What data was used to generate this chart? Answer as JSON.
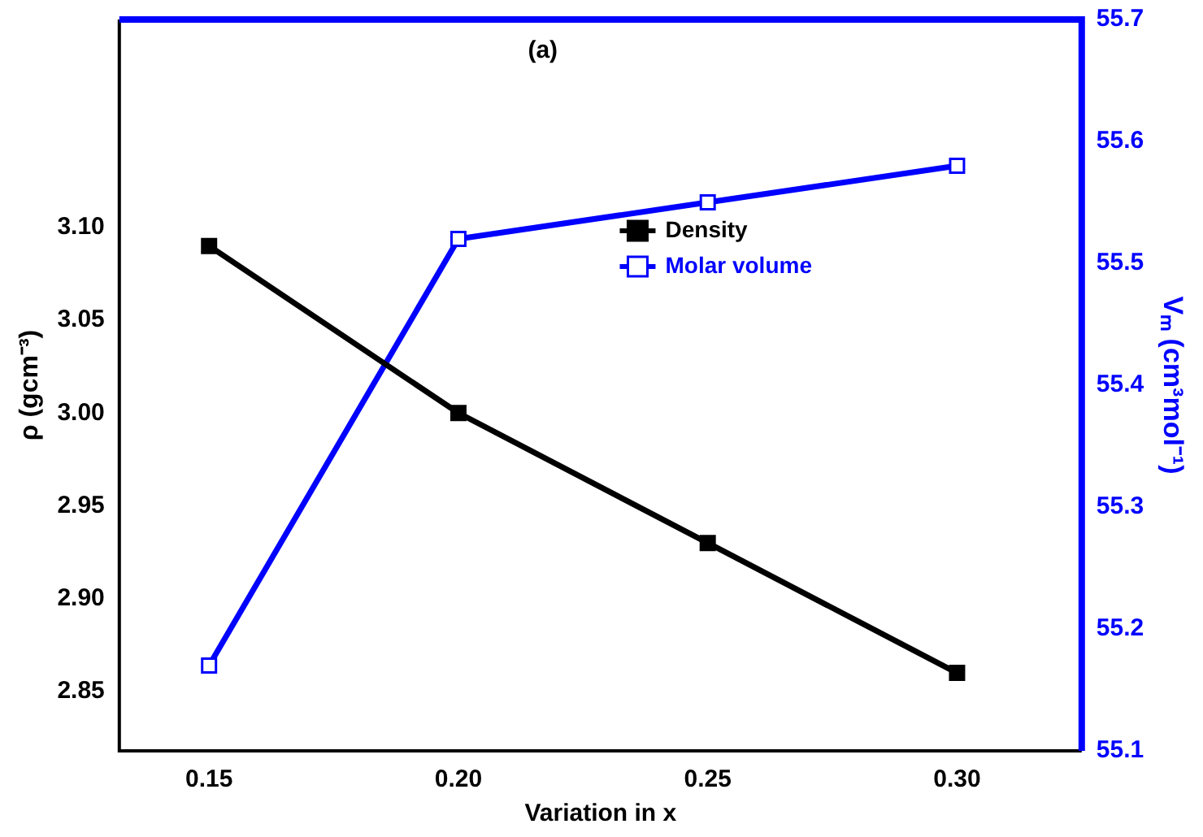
{
  "chart_data": {
    "type": "line",
    "xlabel": "Variation in x",
    "ylabel": "ρ (gcm⁻³)",
    "y2label": "Vₘ (cm³mol⁻¹)",
    "annotations": [
      "(a)"
    ],
    "x": [
      0.15,
      0.2,
      0.25,
      0.3
    ],
    "series": [
      {
        "name": "Density",
        "color": "#000000",
        "values": [
          3.09,
          3.0,
          2.93,
          2.86
        ]
      },
      {
        "name": "Molar volume",
        "color": "#0000ff",
        "axis": "y2",
        "values": [
          55.17,
          55.52,
          55.55,
          55.58
        ]
      }
    ],
    "xlim": [
      0.132,
      0.325
    ],
    "xticks": [
      0.15,
      {
        "value": 0.2,
        "label": "0.20"
      },
      0.25,
      {
        "value": 0.3,
        "label": "0.30"
      }
    ],
    "ylim": [
      2.818,
      3.212
    ],
    "yticks": [
      2.85,
      {
        "value": 2.9,
        "label": "2.90"
      },
      2.95,
      {
        "value": 3.0,
        "label": "3.00"
      },
      3.05,
      {
        "value": 3.1,
        "label": "3.10"
      }
    ],
    "y2lim": [
      55.1,
      55.7
    ],
    "y2ticks": [
      55.1,
      55.2,
      55.3,
      55.4,
      55.5,
      55.6,
      55.7
    ],
    "marker": "square",
    "legend": "top",
    "grid": false
  }
}
